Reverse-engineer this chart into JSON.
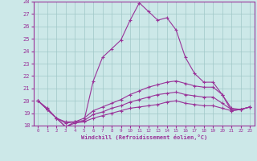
{
  "xlabel": "Windchill (Refroidissement éolien,°C)",
  "xlim": [
    -0.5,
    23.5
  ],
  "ylim": [
    18,
    28
  ],
  "xticks": [
    0,
    1,
    2,
    3,
    4,
    5,
    6,
    7,
    8,
    9,
    10,
    11,
    12,
    13,
    14,
    15,
    16,
    17,
    18,
    19,
    20,
    21,
    22,
    23
  ],
  "yticks": [
    18,
    19,
    20,
    21,
    22,
    23,
    24,
    25,
    26,
    27,
    28
  ],
  "background_color": "#cce8e8",
  "grid_color": "#a0c8c8",
  "line_color": "#993399",
  "lines": [
    {
      "x": [
        0,
        1,
        2,
        3,
        4,
        5,
        6,
        7,
        8,
        9,
        10,
        11,
        12,
        13,
        14,
        15,
        16,
        17,
        18,
        19,
        20,
        21,
        22,
        23
      ],
      "y": [
        20.0,
        19.4,
        18.6,
        17.9,
        18.3,
        18.4,
        21.6,
        23.5,
        24.2,
        24.9,
        26.5,
        27.9,
        27.2,
        26.5,
        26.7,
        25.7,
        23.5,
        22.2,
        21.5,
        21.5,
        20.5,
        19.2,
        19.3,
        19.5
      ]
    },
    {
      "x": [
        0,
        1,
        2,
        3,
        4,
        5,
        6,
        7,
        8,
        9,
        10,
        11,
        12,
        13,
        14,
        15,
        16,
        17,
        18,
        19,
        20,
        21,
        22,
        23
      ],
      "y": [
        20.0,
        19.3,
        18.6,
        18.3,
        18.3,
        18.6,
        19.2,
        19.5,
        19.8,
        20.1,
        20.5,
        20.8,
        21.1,
        21.3,
        21.5,
        21.6,
        21.4,
        21.2,
        21.1,
        21.1,
        20.5,
        19.4,
        19.3,
        19.5
      ]
    },
    {
      "x": [
        0,
        1,
        2,
        3,
        4,
        5,
        6,
        7,
        8,
        9,
        10,
        11,
        12,
        13,
        14,
        15,
        16,
        17,
        18,
        19,
        20,
        21,
        22,
        23
      ],
      "y": [
        20.0,
        19.3,
        18.6,
        18.2,
        18.3,
        18.4,
        18.9,
        19.1,
        19.4,
        19.6,
        19.9,
        20.1,
        20.3,
        20.5,
        20.6,
        20.7,
        20.5,
        20.4,
        20.3,
        20.3,
        19.8,
        19.3,
        19.3,
        19.5
      ]
    },
    {
      "x": [
        0,
        1,
        2,
        3,
        4,
        5,
        6,
        7,
        8,
        9,
        10,
        11,
        12,
        13,
        14,
        15,
        16,
        17,
        18,
        19,
        20,
        21,
        22,
        23
      ],
      "y": [
        20.0,
        19.3,
        18.6,
        17.9,
        18.2,
        18.3,
        18.6,
        18.8,
        19.0,
        19.2,
        19.4,
        19.5,
        19.6,
        19.7,
        19.9,
        20.0,
        19.8,
        19.7,
        19.6,
        19.6,
        19.4,
        19.2,
        19.3,
        19.5
      ]
    }
  ],
  "marker": "+",
  "markersize": 3,
  "linewidth": 0.8
}
